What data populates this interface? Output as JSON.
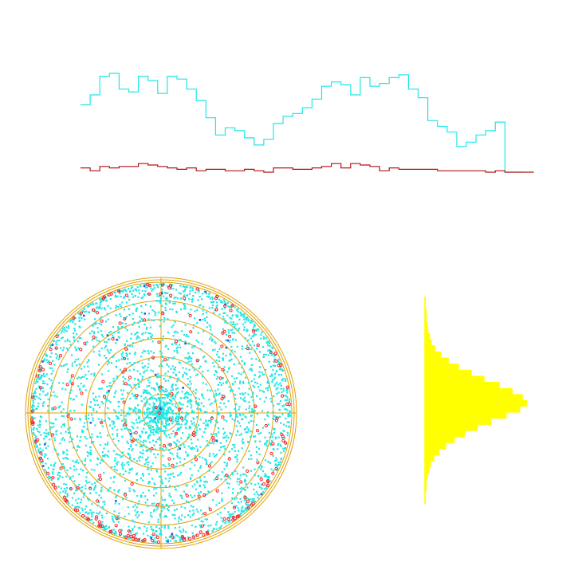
{
  "colors": {
    "background": "#ffffff",
    "cyan": "#22e6e6",
    "dark_red": "#b01515",
    "orange": "#e0a000",
    "red": "#ff2020",
    "blue": "#2a5fd8",
    "yellow": "#ffff00"
  },
  "chart_data": [
    {
      "type": "step-line",
      "series": [
        {
          "color": "cyan",
          "values": [
            105,
            112,
            125,
            127,
            116,
            114,
            125,
            122,
            113,
            125,
            123,
            116,
            108,
            96,
            84,
            89,
            87,
            82,
            77,
            81,
            92,
            97,
            99,
            103,
            109,
            118,
            121,
            119,
            112,
            124,
            118,
            120,
            124,
            126,
            116,
            110,
            94,
            90,
            86,
            76,
            79,
            84,
            87,
            93,
            58,
            58
          ]
        },
        {
          "color": "dark_red",
          "values": [
            61,
            59,
            62,
            61,
            62,
            62,
            64,
            63,
            62,
            61,
            60,
            61,
            59,
            60,
            60,
            59,
            59,
            60,
            59,
            58,
            61,
            61,
            60,
            60,
            61,
            62,
            64,
            61,
            64,
            63,
            62,
            59,
            61,
            60,
            60,
            60,
            60,
            59,
            59,
            59,
            59,
            59,
            58,
            59,
            58,
            58,
            58
          ]
        }
      ]
    },
    {
      "type": "polar-scatter",
      "rings": 7,
      "r_max": 1.0,
      "point_distribution": {
        "cyan_count": 3200,
        "red_count": 230,
        "blue_count": 35,
        "radial_shape": "increasing_toward_edge"
      }
    },
    {
      "type": "histogram",
      "orientation": "horizontal",
      "bins": 34,
      "values": [
        1,
        1,
        2,
        2,
        3,
        4,
        6,
        8,
        12,
        19,
        28,
        40,
        55,
        70,
        88,
        103,
        115,
        120,
        112,
        96,
        78,
        62,
        47,
        35,
        25,
        17,
        11,
        7,
        5,
        3,
        2,
        2,
        1,
        1
      ]
    }
  ]
}
